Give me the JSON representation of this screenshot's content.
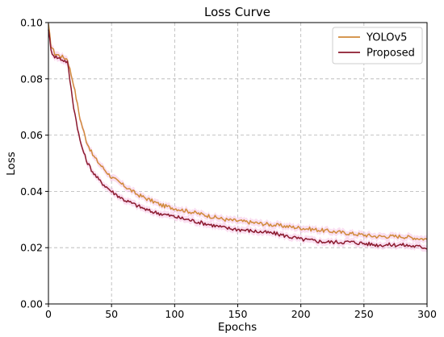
{
  "chart_data": {
    "type": "line",
    "title": "Loss Curve",
    "xlabel": "Epochs",
    "ylabel": "Loss",
    "xlim": [
      0,
      300
    ],
    "ylim": [
      0.0,
      0.1
    ],
    "xticks": [
      "0",
      "50",
      "100",
      "150",
      "200",
      "250",
      "300"
    ],
    "yticks": [
      "0.00",
      "0.02",
      "0.04",
      "0.06",
      "0.08",
      "0.10"
    ],
    "grid": true,
    "legend_position": "top-right",
    "series": [
      {
        "name": "YOLOv5",
        "color": "#d08a3a",
        "band_color": "#f5b8df",
        "x": [
          0,
          2,
          5,
          10,
          15,
          20,
          25,
          30,
          35,
          40,
          50,
          60,
          70,
          80,
          90,
          100,
          120,
          140,
          160,
          180,
          200,
          220,
          240,
          260,
          280,
          300
        ],
        "y": [
          0.099,
          0.092,
          0.089,
          0.088,
          0.087,
          0.078,
          0.066,
          0.058,
          0.053,
          0.05,
          0.045,
          0.042,
          0.039,
          0.037,
          0.035,
          0.034,
          0.032,
          0.03,
          0.029,
          0.028,
          0.027,
          0.026,
          0.025,
          0.024,
          0.024,
          0.023
        ]
      },
      {
        "name": "Proposed",
        "color": "#8b1a2e",
        "band_color": "#f5b8df",
        "x": [
          0,
          2,
          5,
          10,
          15,
          20,
          25,
          30,
          35,
          40,
          50,
          60,
          70,
          80,
          90,
          100,
          120,
          140,
          160,
          180,
          200,
          220,
          240,
          260,
          280,
          300
        ],
        "y": [
          0.098,
          0.09,
          0.088,
          0.087,
          0.086,
          0.07,
          0.058,
          0.051,
          0.047,
          0.044,
          0.04,
          0.037,
          0.035,
          0.033,
          0.032,
          0.031,
          0.029,
          0.027,
          0.026,
          0.025,
          0.023,
          0.022,
          0.022,
          0.021,
          0.021,
          0.02
        ]
      }
    ]
  }
}
